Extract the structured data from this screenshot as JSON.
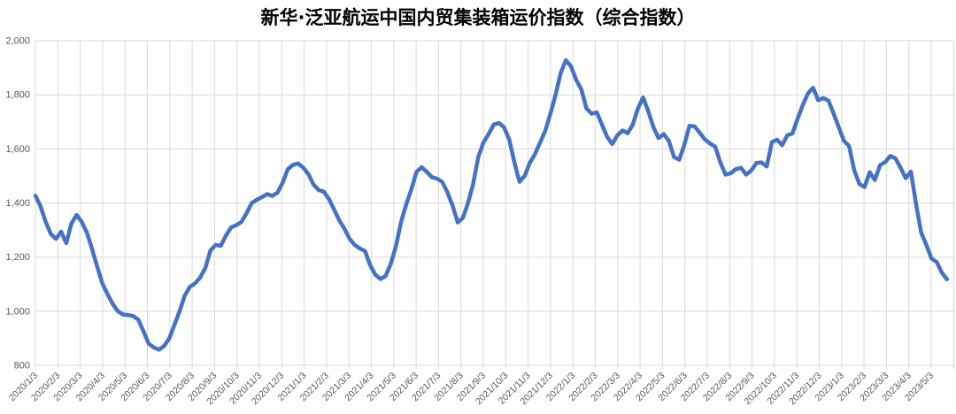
{
  "title": "新华·泛亚航运中国内贸集装箱运价指数（综合指数）",
  "colors": {
    "line": "#4472C4",
    "gridline": "#D9D9D9",
    "tick_label": "#595959",
    "title": "#000000",
    "background": "#FFFFFF"
  },
  "chart_data": {
    "type": "line",
    "title": "新华·泛亚航运中国内贸集装箱运价指数（综合指数）",
    "xlabel": "",
    "ylabel": "",
    "ylim": [
      800,
      2000
    ],
    "y_tick_step": 200,
    "grid": true,
    "legend_position": "none",
    "y_axis_tick_labels": [
      "2,000",
      "1,800",
      "1,600",
      "1,400",
      "1,200",
      "1,000",
      "800"
    ],
    "x_axis_tick_labels": [
      "2020/1/3",
      "2020/2/3",
      "2020/3/3",
      "2020/4/3",
      "2020/5/3",
      "2020/6/3",
      "2020/7/3",
      "2020/8/3",
      "2020/9/3",
      "2020/10/3",
      "2020/11/3",
      "2020/12/3",
      "2021/1/3",
      "2021/2/3",
      "2021/3/3",
      "2021/4/3",
      "2021/5/3",
      "2021/6/3",
      "2021/7/3",
      "2021/8/3",
      "2021/9/3",
      "2021/10/3",
      "2021/11/3",
      "2021/12/3",
      "2022/1/3",
      "2022/2/3",
      "2022/3/3",
      "2022/4/3",
      "2022/5/3",
      "2022/6/3",
      "2022/7/3",
      "2022/8/3",
      "2022/9/3",
      "2022/10/3",
      "2022/11/3",
      "2022/12/3",
      "2023/1/3",
      "2023/2/3",
      "2023/3/3",
      "2023/4/3",
      "2023/5/3"
    ],
    "series_name": "综合指数",
    "x": [
      "2020/1/3",
      "2020/1/10",
      "2020/1/17",
      "2020/1/24",
      "2020/1/31",
      "2020/2/7",
      "2020/2/14",
      "2020/2/21",
      "2020/2/28",
      "2020/3/6",
      "2020/3/13",
      "2020/3/20",
      "2020/3/27",
      "2020/4/3",
      "2020/4/10",
      "2020/4/17",
      "2020/4/24",
      "2020/5/1",
      "2020/5/8",
      "2020/5/15",
      "2020/5/22",
      "2020/5/29",
      "2020/6/5",
      "2020/6/12",
      "2020/6/19",
      "2020/6/26",
      "2020/7/3",
      "2020/7/10",
      "2020/7/17",
      "2020/7/24",
      "2020/7/31",
      "2020/8/7",
      "2020/8/14",
      "2020/8/21",
      "2020/8/28",
      "2020/9/4",
      "2020/9/11",
      "2020/9/18",
      "2020/9/25",
      "2020/10/2",
      "2020/10/9",
      "2020/10/16",
      "2020/10/23",
      "2020/10/30",
      "2020/11/6",
      "2020/11/13",
      "2020/11/20",
      "2020/11/27",
      "2020/12/4",
      "2020/12/11",
      "2020/12/18",
      "2020/12/25",
      "2021/1/1",
      "2021/1/8",
      "2021/1/15",
      "2021/1/22",
      "2021/1/29",
      "2021/2/5",
      "2021/2/12",
      "2021/2/19",
      "2021/2/26",
      "2021/3/5",
      "2021/3/12",
      "2021/3/19",
      "2021/3/26",
      "2021/4/2",
      "2021/4/9",
      "2021/4/16",
      "2021/4/23",
      "2021/4/30",
      "2021/5/7",
      "2021/5/14",
      "2021/5/21",
      "2021/5/28",
      "2021/6/4",
      "2021/6/11",
      "2021/6/18",
      "2021/6/25",
      "2021/7/2",
      "2021/7/9",
      "2021/7/16",
      "2021/7/23",
      "2021/7/30",
      "2021/8/6",
      "2021/8/13",
      "2021/8/20",
      "2021/8/27",
      "2021/9/3",
      "2021/9/10",
      "2021/9/17",
      "2021/9/24",
      "2021/10/1",
      "2021/10/8",
      "2021/10/15",
      "2021/10/22",
      "2021/10/29",
      "2021/11/5",
      "2021/11/12",
      "2021/11/19",
      "2021/11/26",
      "2021/12/3",
      "2021/12/10",
      "2021/12/17",
      "2021/12/24",
      "2021/12/31",
      "2022/1/7",
      "2022/1/14",
      "2022/1/21",
      "2022/1/28",
      "2022/2/4",
      "2022/2/11",
      "2022/2/18",
      "2022/2/25",
      "2022/3/4",
      "2022/3/11",
      "2022/3/18",
      "2022/3/25",
      "2022/4/1",
      "2022/4/8",
      "2022/4/15",
      "2022/4/22",
      "2022/4/29",
      "2022/5/6",
      "2022/5/13",
      "2022/5/20",
      "2022/5/27",
      "2022/6/3",
      "2022/6/10",
      "2022/6/17",
      "2022/6/24",
      "2022/7/1",
      "2022/7/8",
      "2022/7/15",
      "2022/7/22",
      "2022/7/29",
      "2022/8/5",
      "2022/8/12",
      "2022/8/19",
      "2022/8/26",
      "2022/9/2",
      "2022/9/9",
      "2022/9/16",
      "2022/9/23",
      "2022/9/30",
      "2022/10/7",
      "2022/10/14",
      "2022/10/21",
      "2022/10/28",
      "2022/11/4",
      "2022/11/11",
      "2022/11/18",
      "2022/11/25",
      "2022/12/2",
      "2022/12/9",
      "2022/12/16",
      "2022/12/23",
      "2022/12/30",
      "2023/1/6",
      "2023/1/13",
      "2023/1/20",
      "2023/1/27",
      "2023/2/3",
      "2023/2/10",
      "2023/2/17",
      "2023/2/24",
      "2023/3/3",
      "2023/3/10",
      "2023/3/17",
      "2023/3/24",
      "2023/3/31",
      "2023/4/7",
      "2023/4/14",
      "2023/4/21",
      "2023/4/28",
      "2023/5/5",
      "2023/5/12",
      "2023/5/19",
      "2023/5/26"
    ],
    "values": [
      1427,
      1388,
      1330,
      1285,
      1268,
      1294,
      1252,
      1324,
      1356,
      1330,
      1290,
      1230,
      1165,
      1103,
      1063,
      1027,
      1000,
      988,
      986,
      982,
      968,
      925,
      880,
      866,
      858,
      872,
      900,
      950,
      1000,
      1058,
      1090,
      1103,
      1125,
      1160,
      1225,
      1245,
      1242,
      1280,
      1310,
      1318,
      1330,
      1362,
      1400,
      1412,
      1422,
      1433,
      1426,
      1438,
      1475,
      1525,
      1541,
      1546,
      1531,
      1507,
      1468,
      1448,
      1442,
      1415,
      1376,
      1336,
      1305,
      1268,
      1245,
      1232,
      1222,
      1170,
      1135,
      1119,
      1130,
      1175,
      1240,
      1330,
      1395,
      1450,
      1515,
      1532,
      1515,
      1495,
      1490,
      1478,
      1440,
      1390,
      1328,
      1345,
      1400,
      1470,
      1570,
      1624,
      1655,
      1690,
      1696,
      1680,
      1635,
      1550,
      1478,
      1500,
      1548,
      1580,
      1624,
      1667,
      1730,
      1800,
      1880,
      1928,
      1905,
      1855,
      1820,
      1750,
      1730,
      1735,
      1690,
      1645,
      1618,
      1650,
      1668,
      1658,
      1690,
      1750,
      1790,
      1740,
      1680,
      1640,
      1655,
      1630,
      1570,
      1560,
      1615,
      1685,
      1683,
      1660,
      1635,
      1620,
      1608,
      1550,
      1505,
      1510,
      1525,
      1530,
      1505,
      1520,
      1548,
      1550,
      1535,
      1625,
      1634,
      1614,
      1650,
      1657,
      1712,
      1762,
      1805,
      1826,
      1780,
      1788,
      1778,
      1730,
      1680,
      1630,
      1611,
      1520,
      1470,
      1459,
      1514,
      1485,
      1540,
      1551,
      1574,
      1565,
      1530,
      1492,
      1516,
      1395,
      1290,
      1245,
      1195,
      1182,
      1143,
      1118
    ]
  }
}
